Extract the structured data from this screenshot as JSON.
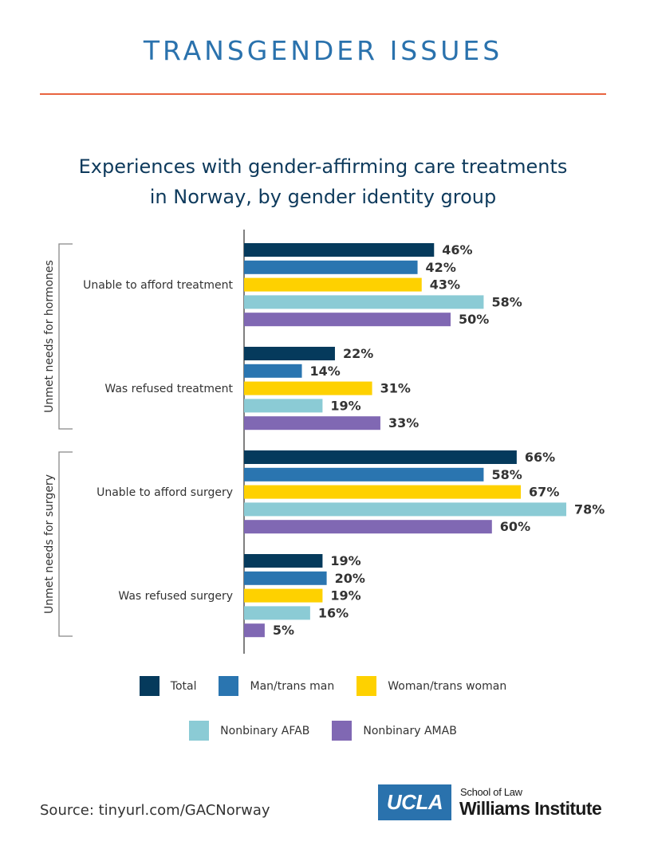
{
  "header": {
    "title": "TRANSGENDER ISSUES",
    "rule_color": "#e8643f",
    "title_color": "#2a72ad"
  },
  "chart_data": {
    "type": "bar",
    "orientation": "horizontal",
    "title_lines": [
      "Experiences with gender-affirming care treatments",
      "in Norway, by gender identity group"
    ],
    "xlabel": "",
    "ylabel": "",
    "xlim": [
      0,
      100
    ],
    "grid": false,
    "value_suffix": "%",
    "groups": [
      {
        "label": "Unmet needs for hormones",
        "categories": [
          "Unable to afford treatment",
          "Was refused treatment"
        ]
      },
      {
        "label": "Unmet needs for surgery",
        "categories": [
          "Unable to afford surgery",
          "Was refused surgery"
        ]
      }
    ],
    "categories": [
      "Unable to afford treatment",
      "Was refused treatment",
      "Unable to afford surgery",
      "Was refused surgery"
    ],
    "series": [
      {
        "name": "Total",
        "color": "#053a5c",
        "values": [
          46,
          22,
          66,
          19
        ]
      },
      {
        "name": "Man/trans man",
        "color": "#2a75b0",
        "values": [
          42,
          14,
          58,
          20
        ]
      },
      {
        "name": "Woman/trans woman",
        "color": "#fed100",
        "values": [
          43,
          31,
          67,
          19
        ]
      },
      {
        "name": "Nonbinary AFAB",
        "color": "#8bcbd5",
        "values": [
          58,
          19,
          78,
          16
        ]
      },
      {
        "name": "Nonbinary AMAB",
        "color": "#8068b3",
        "values": [
          50,
          33,
          60,
          5
        ]
      }
    ],
    "legend_position": "bottom"
  },
  "legend": {
    "rows": [
      [
        {
          "label": "Total",
          "color": "#053a5c"
        },
        {
          "label": "Man/trans man",
          "color": "#2a75b0"
        },
        {
          "label": "Woman/trans woman",
          "color": "#fed100"
        }
      ],
      [
        {
          "label": "Nonbinary AFAB",
          "color": "#8bcbd5"
        },
        {
          "label": "Nonbinary AMAB",
          "color": "#8068b3"
        }
      ]
    ]
  },
  "footer": {
    "source": "Source: tinyurl.com/GACNorway",
    "logo_mark": "UCLA",
    "logo_line1": "School of Law",
    "logo_line2": "Williams Institute",
    "logo_color": "#2a72ad"
  }
}
